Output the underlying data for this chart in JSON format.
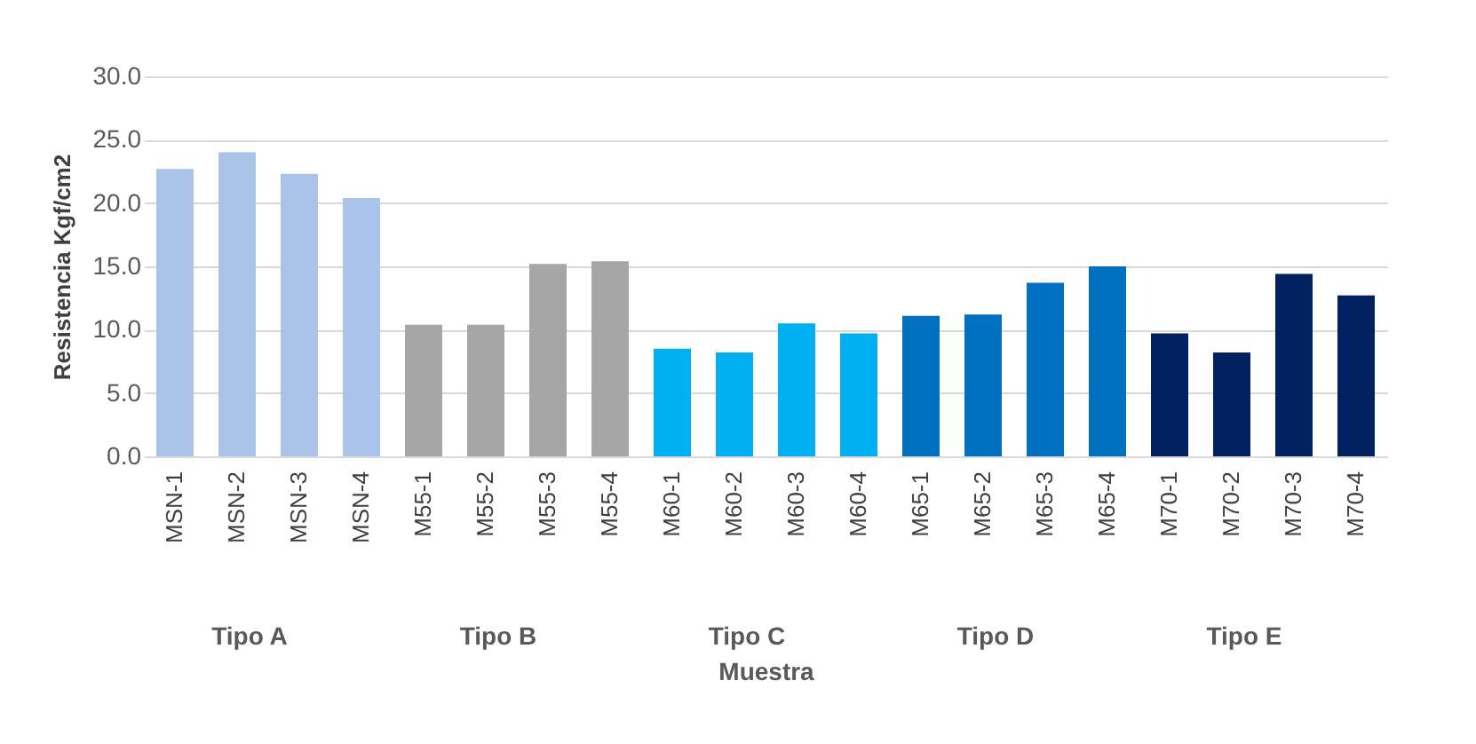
{
  "chart_data": {
    "type": "bar",
    "xlabel": "Muestra",
    "ylabel": "Resistencia Kgf/cm2",
    "categories": [
      "MSN-1",
      "MSN-2",
      "MSN-3",
      "MSN-4",
      "M55-1",
      "M55-2",
      "M55-3",
      "M55-4",
      "M60-1",
      "M60-2",
      "M60-3",
      "M60-4",
      "M65-1",
      "M65-2",
      "M65-3",
      "M65-4",
      "M70-1",
      "M70-2",
      "M70-3",
      "M70-4"
    ],
    "values": [
      22.7,
      24.0,
      22.3,
      20.4,
      10.4,
      10.4,
      15.2,
      15.4,
      8.5,
      8.2,
      10.5,
      9.7,
      11.1,
      11.2,
      13.7,
      15.0,
      9.7,
      8.2,
      14.4,
      12.7
    ],
    "colors": [
      "#a9c4e8",
      "#a9c4e8",
      "#a9c4e8",
      "#a9c4e8",
      "#a6a6a6",
      "#a6a6a6",
      "#a6a6a6",
      "#a6a6a6",
      "#00b0f0",
      "#00b0f0",
      "#00b0f0",
      "#00b0f0",
      "#0070c0",
      "#0070c0",
      "#0070c0",
      "#0070c0",
      "#002060",
      "#002060",
      "#002060",
      "#002060"
    ],
    "annotations": [
      "Tipo A",
      "Tipo B",
      "Tipo C",
      "Tipo D",
      "Tipo E"
    ],
    "ylim": [
      0,
      30
    ],
    "yticks": [
      {
        "value": 0,
        "label": "0.0"
      },
      {
        "value": 5,
        "label": "5.0"
      },
      {
        "value": 10,
        "label": "10.0"
      },
      {
        "value": 15,
        "label": "15.0"
      },
      {
        "value": 20,
        "label": "20.0"
      },
      {
        "value": 25,
        "label": "25.0"
      },
      {
        "value": 30,
        "label": "30.0"
      }
    ],
    "grid": "y"
  }
}
